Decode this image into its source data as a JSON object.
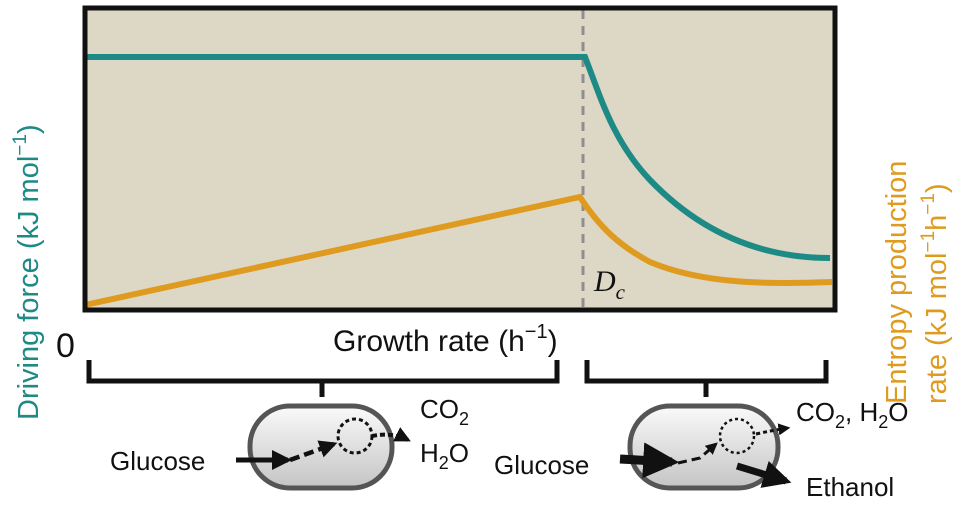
{
  "colors": {
    "plot_bg": "#ddd8c6",
    "teal": "#1e8a85",
    "orange": "#df9b20",
    "frame": "#111111",
    "dash": "#8f8f8f"
  },
  "axes": {
    "origin_label": "0",
    "x_label": "Growth rate",
    "x_unit_base": "(h",
    "x_unit_exp": "−1",
    "x_unit_close": ")",
    "y_left": {
      "label": "Driving force",
      "unit_base": "(kJ mol",
      "unit_exp": "−1",
      "unit_close": ")"
    },
    "y_right": {
      "line1": "Entropy production",
      "line2_base": "rate (kJ mol",
      "line2_exp1": "−1",
      "line2_mid": "h",
      "line2_exp2": "−1",
      "line2_close": ")"
    }
  },
  "critical_point": {
    "symbol": "D",
    "subscript": "c"
  },
  "regimes": {
    "left": {
      "substrate": "Glucose",
      "product_1_base": "CO",
      "product_1_sub": "2",
      "product_2_base": "H",
      "product_2_sub": "2",
      "product_2_end": "O"
    },
    "right": {
      "substrate": "Glucose",
      "product_1_base": "CO",
      "product_1_sub": "2",
      "product_1_sep": ", H",
      "product_1_sub2": "2",
      "product_1_end": "O",
      "product_2": "Ethanol"
    }
  }
}
